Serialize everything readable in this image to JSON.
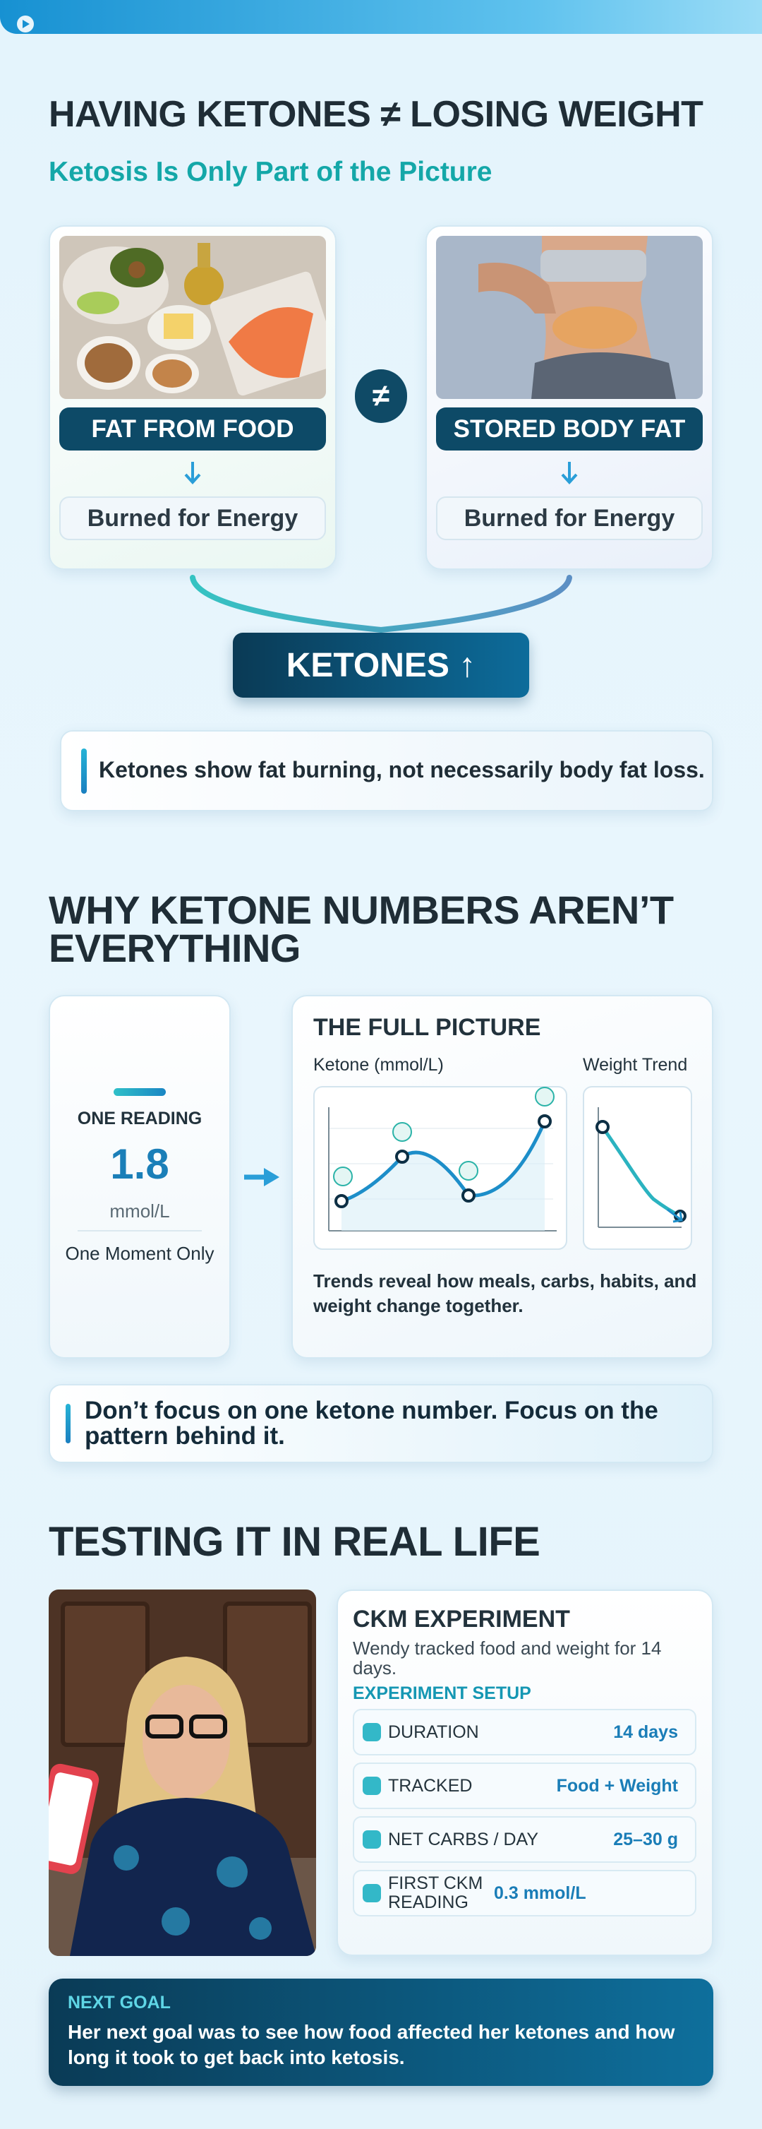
{
  "header": {
    "title": "HAVING KETONES ≠ LOSING WEIGHT",
    "subtitle": "Ketosis Is Only Part of the Picture"
  },
  "comparison": {
    "left": {
      "label": "FAT FROM FOOD",
      "result": "Burned for Energy"
    },
    "symbol": "≠",
    "right": {
      "label": "STORED BODY FAT",
      "result": "Burned for Energy"
    },
    "outcome": "KETONES ↑",
    "note": "Ketones show fat burning, not necessarily body fat loss."
  },
  "section2": {
    "title": "WHY KETONE NUMBERS AREN’T EVERYTHING",
    "reading": {
      "label": "ONE READING",
      "value": 1.8,
      "unit": "mmol/L",
      "caption": "One Moment Only"
    },
    "full_picture": {
      "title": "THE FULL PICTURE",
      "ketone_label": "Ketone (mmol/L)",
      "weight_label": "Weight Trend",
      "caption": "Trends reveal how meals, carbs, habits, and weight change together."
    },
    "note": "Don’t focus on one ketone number. Focus on the pattern behind it."
  },
  "section3": {
    "title": "TESTING IT IN REAL LIFE",
    "card": {
      "title": "CKM EXPERIMENT",
      "description": "Wendy tracked food and weight for 14 days.",
      "setup_label": "EXPERIMENT SETUP",
      "rows": [
        {
          "label": "DURATION",
          "value": "14 days"
        },
        {
          "label": "TRACKED",
          "value": "Food + Weight"
        },
        {
          "label": "NET CARBS / DAY",
          "value": "25–30 g"
        },
        {
          "label": "FIRST CKM READING",
          "value": "0.3 mmol/L"
        }
      ]
    }
  },
  "next_goal": {
    "label": "NEXT GOAL",
    "text": "Her next goal was to see how food affected her ketones and how long it took to get back into ketosis."
  }
}
